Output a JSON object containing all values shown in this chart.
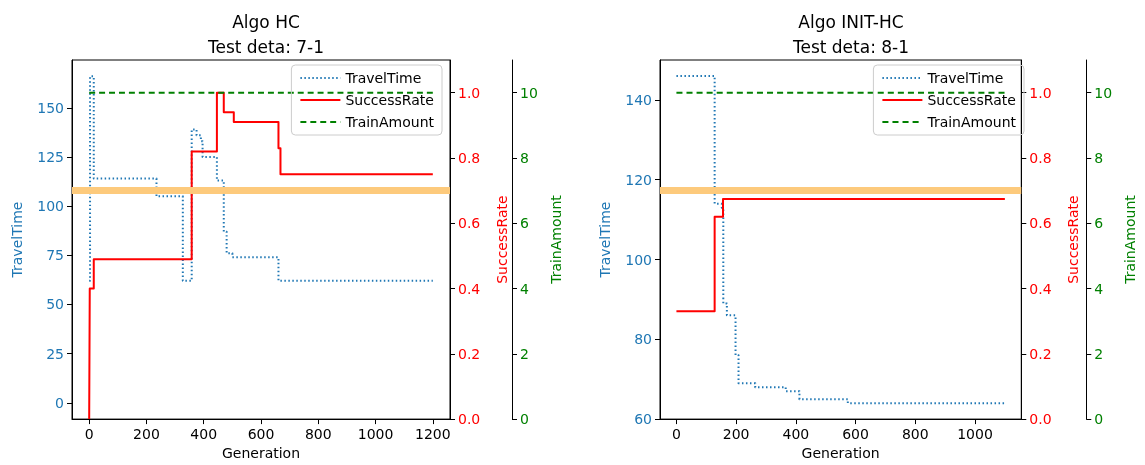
{
  "chart_data": [
    {
      "type": "step",
      "title": "Algo HC",
      "subtitle": "Test deta: 7-1",
      "xlabel": "Generation",
      "ylabel": "TravelTime",
      "y2label": "SuccessRate",
      "y3label": "TrainAmount",
      "xlim": [
        -60,
        1260
      ],
      "xticks": [
        0,
        200,
        400,
        600,
        800,
        1000,
        1200
      ],
      "ylim": [
        -8.3,
        174.3
      ],
      "yticks": [
        0,
        25,
        50,
        75,
        100,
        125,
        150
      ],
      "y2lim": [
        0,
        1.1
      ],
      "y2ticks": [
        {
          "value": 0,
          "label": "0.0"
        },
        {
          "value": 0.2,
          "label": "0.2"
        },
        {
          "value": 0.4,
          "label": "0.4"
        },
        {
          "value": 0.6,
          "label": "0.6"
        },
        {
          "value": 0.8,
          "label": "0.8"
        },
        {
          "value": 1,
          "label": "1.0"
        }
      ],
      "y3lim": [
        0,
        11
      ],
      "y3ticks": [
        0,
        2,
        4,
        6,
        8,
        10
      ],
      "legend": "top right",
      "grid": false,
      "ref_lines": [
        {
          "axis": "y2",
          "value": 0.7,
          "color": "#fdca7c"
        }
      ],
      "series": [
        {
          "name": "TravelTime",
          "color": "#1f77b4",
          "line_style": "dotted",
          "x": [
            0,
            3,
            16,
            235,
            327,
            358,
            375,
            390,
            396,
            446,
            470,
            480,
            500,
            661,
            1200
          ],
          "values": [
            62,
            166,
            114,
            105,
            62,
            139,
            136,
            133,
            125,
            113,
            87,
            76,
            74,
            62,
            62
          ]
        },
        {
          "name": "SuccessRate",
          "color": "#ff0000",
          "line_style": "solid",
          "axis": "y2",
          "x": [
            0,
            2,
            16,
            358,
            446,
            470,
            505,
            661,
            668,
            1200
          ],
          "values": [
            0,
            0.4,
            0.49,
            0.82,
            1.0,
            0.94,
            0.91,
            0.83,
            0.75,
            0.75
          ]
        },
        {
          "name": "TrainAmount",
          "color": "#008000",
          "line_style": "dashed",
          "axis": "y3",
          "x": [
            0,
            1200
          ],
          "values": [
            10,
            10
          ]
        }
      ]
    },
    {
      "type": "step",
      "title": "Algo INIT-HC",
      "subtitle": "Test deta: 8-1",
      "xlabel": "Generation",
      "ylabel": "TravelTime",
      "y2label": "SuccessRate",
      "y3label": "TrainAmount",
      "xlim": [
        -55,
        1155
      ],
      "xticks": [
        0,
        200,
        400,
        600,
        800,
        1000
      ],
      "ylim": [
        60,
        150
      ],
      "yticks": [
        60,
        80,
        100,
        120,
        140
      ],
      "y2lim": [
        0,
        1.1
      ],
      "y2ticks": [
        {
          "value": 0,
          "label": "0.0"
        },
        {
          "value": 0.2,
          "label": "0.2"
        },
        {
          "value": 0.4,
          "label": "0.4"
        },
        {
          "value": 0.6,
          "label": "0.6"
        },
        {
          "value": 0.8,
          "label": "0.8"
        },
        {
          "value": 1,
          "label": "1.0"
        }
      ],
      "y3lim": [
        0,
        11
      ],
      "y3ticks": [
        0,
        2,
        4,
        6,
        8,
        10
      ],
      "legend": "top right",
      "grid": false,
      "ref_lines": [
        {
          "axis": "y2",
          "value": 0.7,
          "color": "#fdca7c"
        }
      ],
      "series": [
        {
          "name": "TravelTime",
          "color": "#1f77b4",
          "line_style": "dotted",
          "x": [
            0,
            128,
            152,
            157,
            169,
            198,
            208,
            264,
            366,
            412,
            574,
            1100
          ],
          "values": [
            146,
            114,
            113,
            89,
            86,
            76,
            69,
            68,
            67,
            65,
            64,
            64
          ]
        },
        {
          "name": "SuccessRate",
          "color": "#ff0000",
          "line_style": "solid",
          "axis": "y2",
          "x": [
            0,
            128,
            156,
            1100
          ],
          "values": [
            0.33,
            0.62,
            0.674,
            0.674
          ]
        },
        {
          "name": "TrainAmount",
          "color": "#008000",
          "line_style": "dashed",
          "axis": "y3",
          "x": [
            0,
            1100
          ],
          "values": [
            10,
            10
          ]
        }
      ]
    }
  ]
}
